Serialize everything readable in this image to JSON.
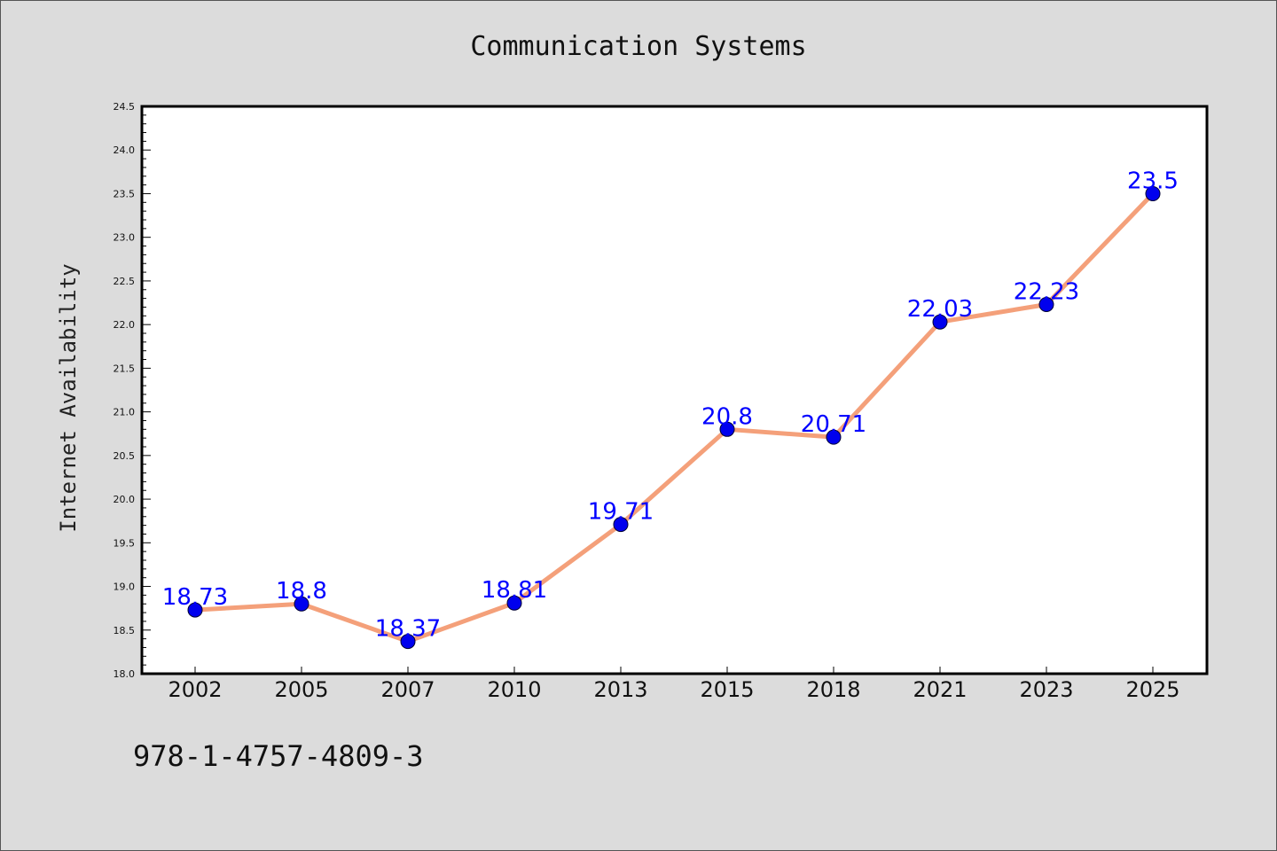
{
  "chart_data": {
    "type": "line",
    "title": "Communication Systems",
    "xlabel": "",
    "ylabel": "Internet Availability",
    "categories": [
      "2002",
      "2005",
      "2007",
      "2010",
      "2013",
      "2015",
      "2018",
      "2021",
      "2023",
      "2025"
    ],
    "series": [
      {
        "values": [
          18.73,
          18.8,
          18.37,
          18.81,
          19.71,
          20.8,
          20.71,
          22.03,
          22.23,
          23.5
        ],
        "data_labels": [
          "18.73",
          "18.8",
          "18.37",
          "18.81",
          "19.71",
          "20.8",
          "20.71",
          "22.03",
          "22.23",
          "23.5"
        ]
      }
    ],
    "ylim": [
      18.0,
      24.5
    ],
    "yticks": [
      "18.0",
      "18.5",
      "19.0",
      "19.5",
      "20.0",
      "20.5",
      "21.0",
      "21.5",
      "22.0",
      "22.5",
      "23.0",
      "23.5",
      "24.0",
      "24.5"
    ],
    "grid": false,
    "colors": {
      "line": "#f4a07a",
      "marker": "#0000ee",
      "marker_edge": "#000033",
      "label": "#0000ff",
      "background": "#dcdcdc",
      "plot_background": "#ffffff"
    }
  },
  "annotation": {
    "isbn": "978-1-4757-4809-3"
  }
}
